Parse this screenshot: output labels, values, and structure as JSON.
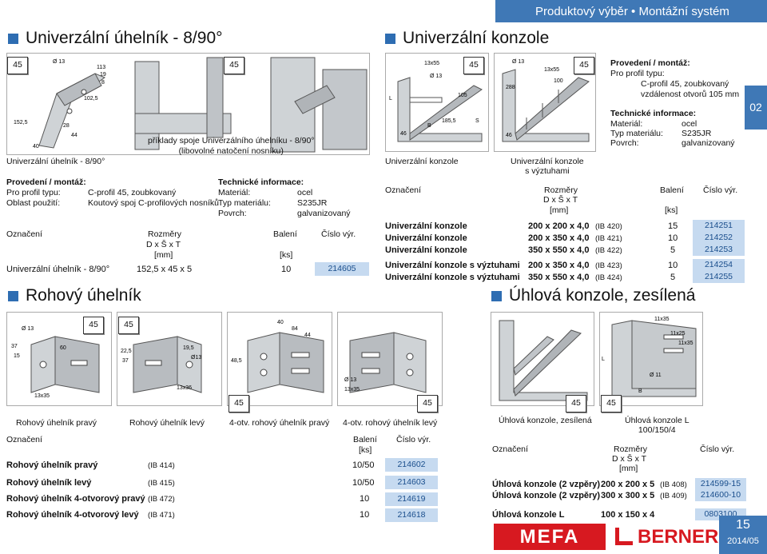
{
  "header": {
    "bar": "Produktový výběr • Montážní systém"
  },
  "sec1": {
    "title": "Univerzální úhelník - 8/90°",
    "img_caption": "Univerzální úhelník - 8/90°",
    "example_caption": "příklady spoje Univerzálního úhelníku - 8/90°\n(libovolné natočení nosníku)",
    "badge": "45",
    "prov_title": "Provedení / montáž:",
    "prov_k1": "Pro profil typu:",
    "prov_v1": "C-profil 45, zoubkovaný",
    "prov_k2": "Oblast použití:",
    "prov_v2": "Koutový spoj C-profilových nosníků",
    "tech_title": "Technické informace:",
    "tech_k1": "Materiál:",
    "tech_v1": "ocel",
    "tech_k2": "Typ materiálu:",
    "tech_v2": "S235JR",
    "tech_k3": "Povrch:",
    "tech_v3": "galvanizovaný",
    "dims": {
      "d1": "113",
      "d2": "152,5",
      "d3": "40",
      "d4": "28",
      "d5": "44",
      "d6": "19",
      "d7": "8",
      "d8": "102,5",
      "d9": "Ø 13"
    },
    "th_oznaceni": "Označení",
    "th_rozmery": "Rozměry",
    "th_dsx": "D x Š x T",
    "th_mm": "[mm]",
    "th_baleni": "Balení",
    "th_ks": "[ks]",
    "th_cislo": "Číslo výr.",
    "row": {
      "name": "Univerzální úhelník - 8/90°",
      "dim": "152,5 x 45 x 5",
      "qty": "10",
      "num": "214605"
    }
  },
  "sec2": {
    "title": "Univerzální konzole",
    "cap1": "Univerzální konzole",
    "cap2": "Univerzální konzole\ns výztuhami",
    "badge": "45",
    "th_oznaceni": "Označení",
    "th_rozmery": "Rozměry",
    "th_dsx": "D x Š x T",
    "th_mm": "[mm]",
    "th_baleni": "Balení",
    "th_ks": "[ks]",
    "th_cislo": "Číslo výr.",
    "rows": [
      {
        "name": "Univerzální konzole",
        "dim": "200 x 200 x 4,0",
        "ib": "(IB 420)",
        "qty": "15",
        "num": "214251"
      },
      {
        "name": "Univerzální konzole",
        "dim": "200 x 350 x 4,0",
        "ib": "(IB 421)",
        "qty": "10",
        "num": "214252"
      },
      {
        "name": "Univerzální konzole",
        "dim": "350 x 550 x 4,0",
        "ib": "(IB 422)",
        "qty": "5",
        "num": "214253"
      },
      {
        "name": "Univerzální konzole s výztuhami",
        "dim": "200 x 350 x 4,0",
        "ib": "(IB 423)",
        "qty": "10",
        "num": "214254"
      },
      {
        "name": "Univerzální konzole s výztuhami",
        "dim": "350 x 550 x 4,0",
        "ib": "(IB 424)",
        "qty": "5",
        "num": "214255"
      }
    ],
    "prov_title": "Provedení / montáž:",
    "prov_k1": "Pro profil typu:",
    "prov_v1": "C-profil 45, zoubkovaný",
    "prov_v2": "vzdálenost otvorů 105 mm",
    "tech_title": "Technické informace:",
    "tech_k1": "Materiál:",
    "tech_v1": "ocel",
    "tech_k2": "Typ materiálu:",
    "tech_v2": "S235JR",
    "tech_k3": "Povrch:",
    "tech_v3": "galvanizovaný",
    "dims": {
      "d1": "13x55",
      "d2": "Ø 13",
      "d3": "105",
      "d4": "L",
      "d5": "B",
      "d6": "S",
      "d7": "46",
      "d8": "185,5",
      "d9": "Ø 13",
      "d10": "13x55",
      "d11": "100",
      "d12": "288",
      "d13": "46"
    }
  },
  "sidetab": "02",
  "sec3": {
    "title": "Rohový úhelník",
    "caps": [
      "Rohový úhelník pravý",
      "Rohový úhelník levý",
      "4-otv. rohový úhelník pravý",
      "4-otv. rohový úhelník levý"
    ],
    "badge": "45",
    "th_oznaceni": "Označení",
    "th_baleni": "Balení",
    "th_ks": "[ks]",
    "th_cislo": "Číslo výr.",
    "rows": [
      {
        "name": "Rohový úhelník pravý",
        "ib": "(IB 414)",
        "qty": "10/50",
        "num": "214602"
      },
      {
        "name": "Rohový úhelník levý",
        "ib": "(IB 415)",
        "qty": "10/50",
        "num": "214603"
      },
      {
        "name": "Rohový úhelník 4-otvorový pravý",
        "ib": "(IB 472)",
        "qty": "10",
        "num": "214619"
      },
      {
        "name": "Rohový úhelník 4-otvorový levý",
        "ib": "(IB 471)",
        "qty": "10",
        "num": "214618"
      }
    ],
    "dims": {
      "d1": "Ø 13",
      "d2": "37",
      "d3": "15",
      "d4": "60",
      "d5": "13x35",
      "d6": "22,5",
      "d7": "37",
      "d8": "19,5",
      "d9": "Ø13",
      "d10": "13x36",
      "d11": "40",
      "d12": "84",
      "d13": "44",
      "d14": "48,5",
      "d15": "Ø 13",
      "d16": "13x35"
    }
  },
  "sec4": {
    "title": "Úhlová konzole, zesílená",
    "cap1": "Úhlová konzole, zesílená",
    "cap2": "Úhlová konzole L\n100/150/4",
    "badge": "45",
    "th_oznaceni": "Označení",
    "th_rozmery": "Rozměry",
    "th_dsx": "D x Š x T",
    "th_mm": "[mm]",
    "th_cislo": "Číslo výr.",
    "rows": [
      {
        "name": "Úhlová konzole (2 vzpěry)",
        "dim": "200 x 200 x 5",
        "ib": "(IB 408)",
        "num": "214599-15"
      },
      {
        "name": "Úhlová konzole (2 vzpěry)",
        "dim": "300 x 300 x 5",
        "ib": "(IB 409)",
        "num": "214600-10"
      },
      {
        "name": "Úhlová konzole L",
        "dim": "100 x 150 x 4",
        "ib": "",
        "num": "0803100"
      }
    ],
    "dims": {
      "d1": "11x35",
      "d2": "11x25",
      "d3": "11x35",
      "d4": "Ø 11",
      "d5": "B",
      "d6": "L"
    }
  },
  "footer": {
    "mefa": "MEFA",
    "berner": "BERNER",
    "page": "15",
    "date": "2014/05"
  },
  "colors": {
    "accent": "#3f78b6",
    "blue_cell": "#c6daf0"
  }
}
